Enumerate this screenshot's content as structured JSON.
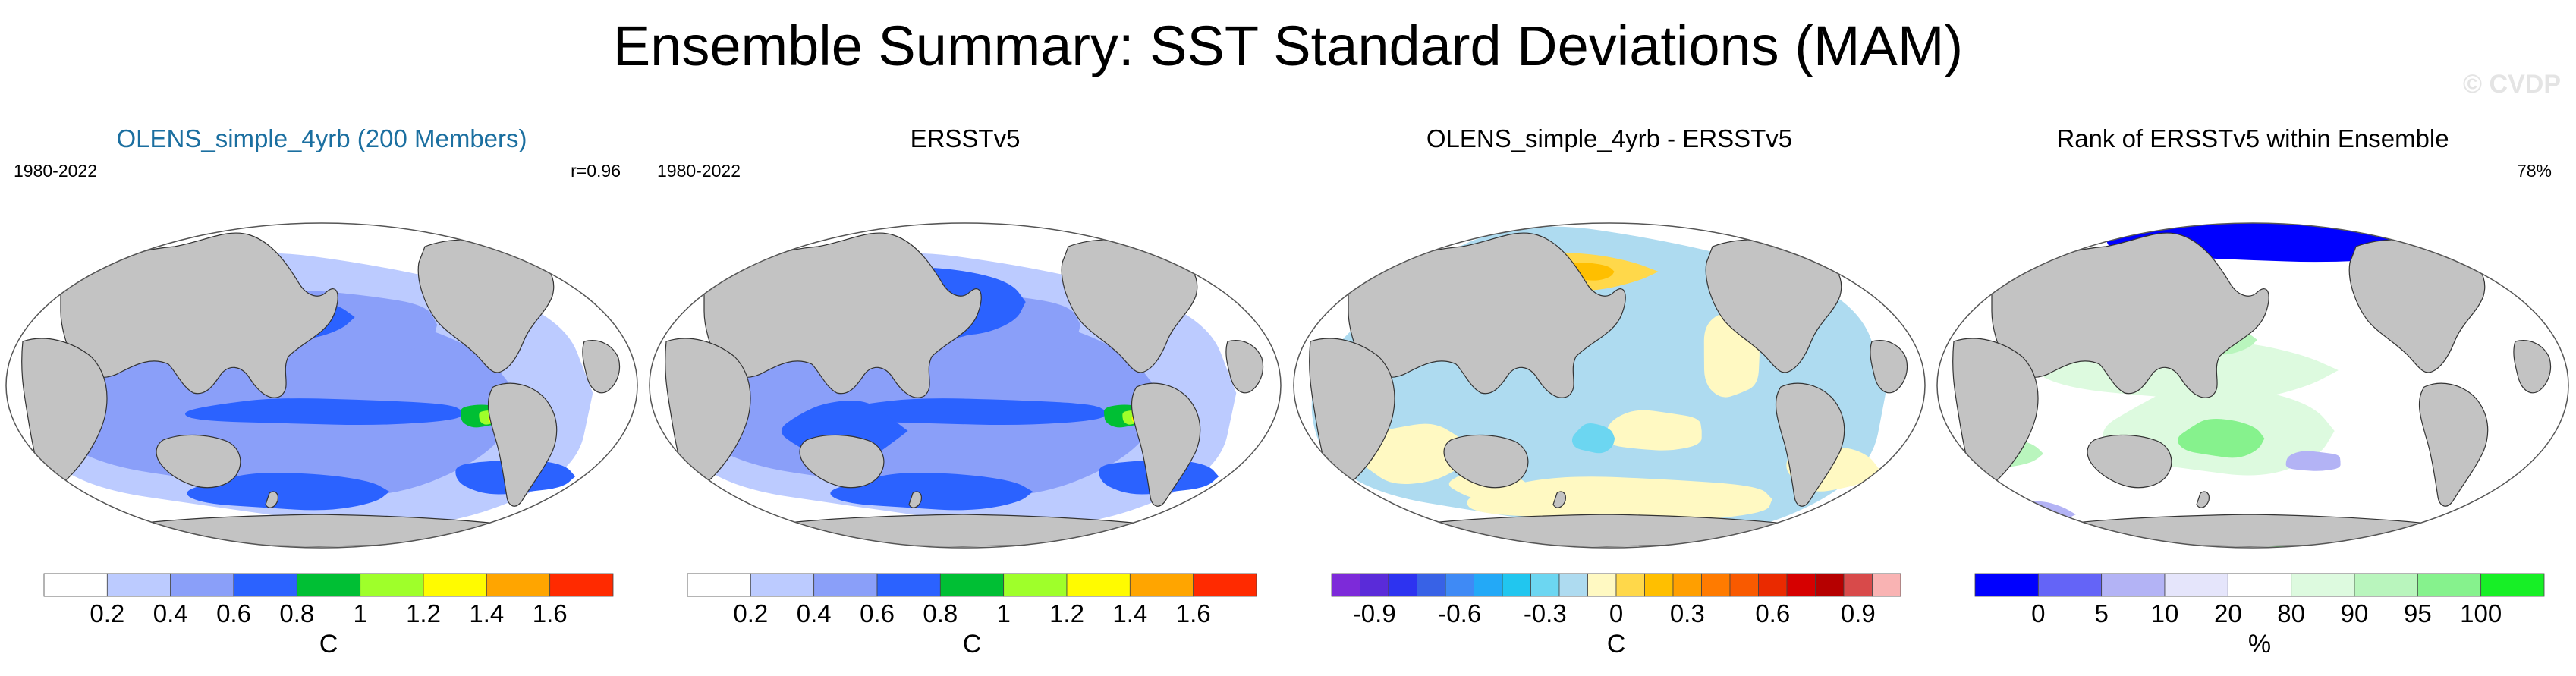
{
  "title": "Ensemble Summary: SST Standard Deviations (MAM)",
  "watermark": "© CVDP",
  "colors": {
    "land": "#c3c3c3",
    "ocean_base": "#ffffff",
    "title_link": "#1f5f9e"
  },
  "panels": [
    {
      "title": "OLENS_simple_4yrb (200 Members)",
      "title_color": "#1b6fa0",
      "left_label": "1980-2022",
      "right_label": "r=0.96",
      "map_kind": "std_ens",
      "colorbar": {
        "colors": [
          "#ffffff",
          "#bccbff",
          "#8a9ff9",
          "#2b62ff",
          "#00bf34",
          "#9fff2a",
          "#fffb00",
          "#ffa500",
          "#ff2a00"
        ],
        "labels": [
          "0.2",
          "0.4",
          "0.6",
          "0.8",
          "1",
          "1.2",
          "1.4",
          "1.6"
        ],
        "unit": "C"
      }
    },
    {
      "title": "ERSSTv5",
      "title_color": "#000000",
      "left_label": "1980-2022",
      "right_label": "",
      "map_kind": "std_obs",
      "colorbar": {
        "colors": [
          "#ffffff",
          "#bccbff",
          "#8a9ff9",
          "#2b62ff",
          "#00bf34",
          "#9fff2a",
          "#fffb00",
          "#ffa500",
          "#ff2a00"
        ],
        "labels": [
          "0.2",
          "0.4",
          "0.6",
          "0.8",
          "1",
          "1.2",
          "1.4",
          "1.6"
        ],
        "unit": "C"
      }
    },
    {
      "title": "OLENS_simple_4yrb - ERSSTv5",
      "title_color": "#000000",
      "left_label": "",
      "right_label": "",
      "map_kind": "diff",
      "colorbar": {
        "colors": [
          "#7d2ad9",
          "#5a2bd9",
          "#2d33f0",
          "#3862e6",
          "#3f8af5",
          "#23a9f7",
          "#21c6ef",
          "#6cd6f1",
          "#aedbf0",
          "#fff9c2",
          "#ffd84a",
          "#ffbf00",
          "#ff9f00",
          "#ff7b00",
          "#f95a00",
          "#ea2a00",
          "#d60000",
          "#b60000",
          "#d84a4a",
          "#f9b3b3"
        ],
        "labels": [
          "-0.9",
          "-0.6",
          "-0.3",
          "0",
          "0.3",
          "0.6",
          "0.9"
        ],
        "label_positions": [
          1.5,
          4.5,
          7.5,
          10.0,
          12.5,
          15.5,
          18.5
        ],
        "unit": "C"
      }
    },
    {
      "title": "Rank of ERSSTv5 within Ensemble",
      "title_color": "#000000",
      "left_label": "",
      "right_label": "78%",
      "map_kind": "rank",
      "colorbar": {
        "colors": [
          "#0000ff",
          "#6464f7",
          "#b3b3f5",
          "#e5e5fb",
          "#ffffff",
          "#ddfadf",
          "#b9f5bd",
          "#86f28d",
          "#17ef26"
        ],
        "labels": [
          "0",
          "5",
          "10",
          "20",
          "80",
          "90",
          "95",
          "100"
        ],
        "unit": "%"
      }
    }
  ]
}
